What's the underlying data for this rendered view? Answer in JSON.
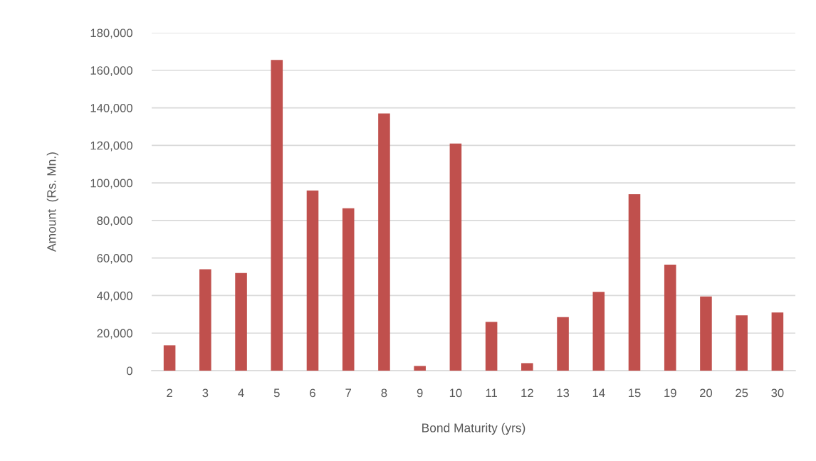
{
  "chart_data": {
    "type": "bar",
    "xlabel": "Bond Maturity (yrs)",
    "ylabel": "Amount  (Rs. Mn.)",
    "categories": [
      "2",
      "3",
      "4",
      "5",
      "6",
      "7",
      "8",
      "9",
      "10",
      "11",
      "12",
      "13",
      "14",
      "15",
      "19",
      "20",
      "25",
      "30"
    ],
    "values": [
      13500,
      54000,
      52000,
      165500,
      96000,
      86500,
      137000,
      2500,
      121000,
      26000,
      4000,
      28500,
      42000,
      94000,
      56500,
      39500,
      29500,
      31000
    ],
    "color": "#c0504d",
    "ylim": [
      0,
      180000
    ],
    "yticks": [
      0,
      {
        "value": 20000,
        "label": "20,000"
      },
      {
        "value": 40000,
        "label": "40,000"
      },
      {
        "value": 60000,
        "label": "60,000"
      },
      {
        "value": 80000,
        "label": "80,000"
      },
      {
        "value": 100000,
        "label": "100,000"
      },
      {
        "value": 120000,
        "label": "120,000"
      },
      {
        "value": 140000,
        "label": "140,000"
      },
      {
        "value": 160000,
        "label": "160,000"
      },
      {
        "value": 180000,
        "label": "180,000"
      }
    ],
    "grid": "y"
  }
}
